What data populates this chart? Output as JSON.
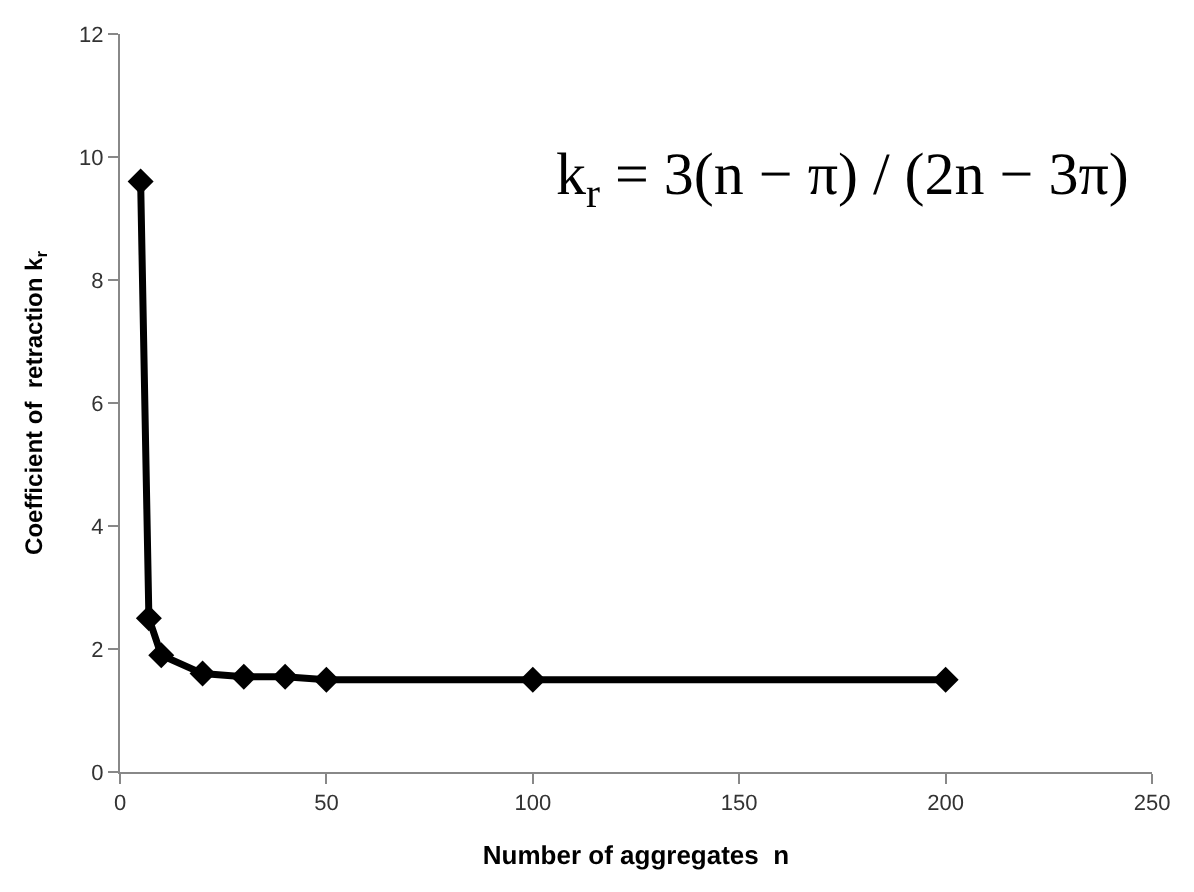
{
  "chart_data": {
    "type": "line",
    "xlabel": "Number of aggregates  n",
    "ylabel": "Coefficient of  retraction k$_{r}$",
    "x": [
      5,
      7,
      10,
      20,
      30,
      40,
      50,
      100,
      200
    ],
    "series": [
      {
        "color": "#000000",
        "values": [
          9.6,
          2.5,
          1.9,
          1.6,
          1.55,
          1.55,
          1.5,
          1.5,
          1.5
        ]
      }
    ],
    "xlim": [
      0,
      250
    ],
    "xticks": [
      0,
      50,
      100,
      150,
      200,
      250
    ],
    "ylim": [
      0,
      12
    ],
    "yticks": [
      0,
      2,
      4,
      6,
      8,
      10,
      12
    ],
    "legend": false,
    "marker": "diamond",
    "line_style": "solid",
    "annotations": [
      "k$_{r}$ = 3(n − π) / (2n − 3π)"
    ]
  }
}
